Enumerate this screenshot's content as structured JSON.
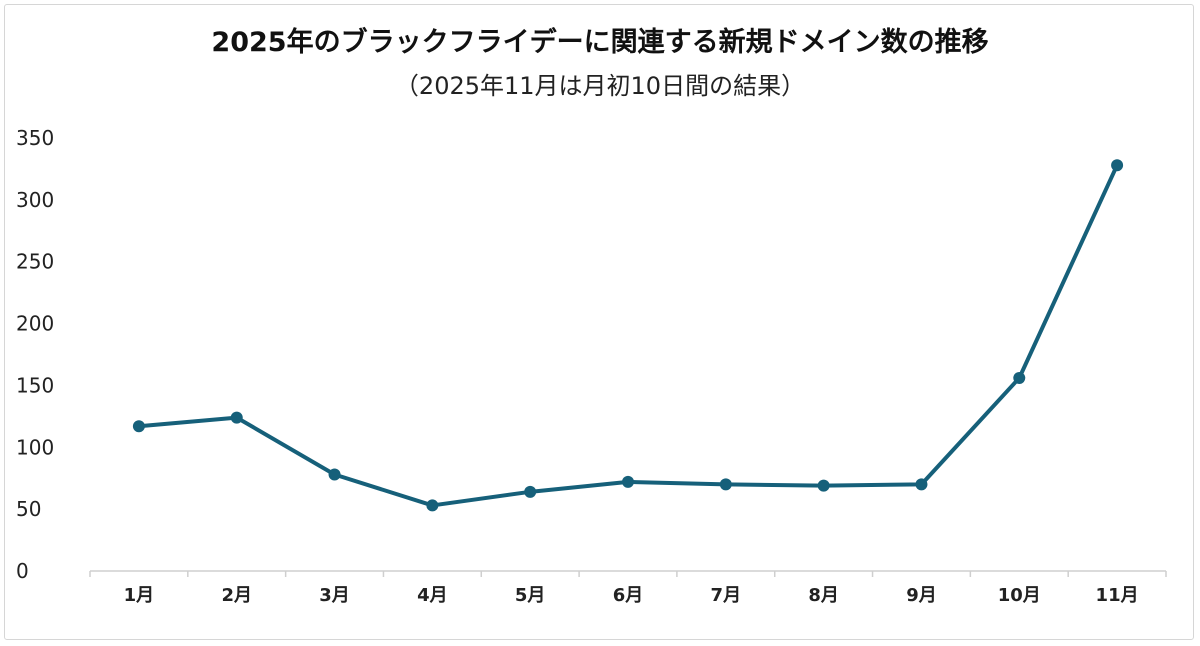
{
  "chart_data": {
    "type": "line",
    "title": "2025年のブラックフライデーに関連する新規ドメイン数の推移",
    "subtitle": "（2025年11月は月初10日間の結果）",
    "xlabel": "",
    "ylabel": "",
    "categories": [
      "1月",
      "2月",
      "3月",
      "4月",
      "5月",
      "6月",
      "7月",
      "8月",
      "9月",
      "10月",
      "11月"
    ],
    "series": [
      {
        "values": [
          117,
          124,
          78,
          53,
          64,
          72,
          70,
          69,
          70,
          156,
          328
        ]
      }
    ],
    "ylim": [
      0,
      350
    ],
    "yticks": [
      "0",
      "50",
      "100",
      "150",
      "200",
      "250",
      "300",
      "350"
    ],
    "grid": false,
    "legend": "none",
    "line_color": "#16607a"
  }
}
